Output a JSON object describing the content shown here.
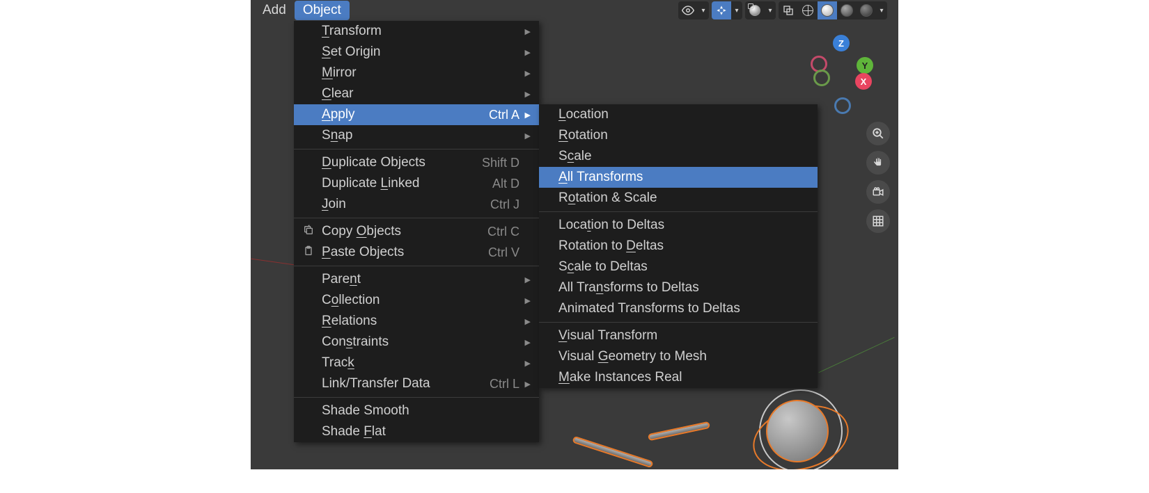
{
  "header": {
    "add": "Add",
    "object": "Object"
  },
  "menu_main": [
    {
      "type": "item",
      "label": "Transform",
      "ul": "T",
      "submenu": true
    },
    {
      "type": "item",
      "label": "Set Origin",
      "ul": "S",
      "submenu": true
    },
    {
      "type": "item",
      "label": "Mirror",
      "ul": "M",
      "submenu": true
    },
    {
      "type": "item",
      "label": "Clear",
      "ul": "C",
      "submenu": true
    },
    {
      "type": "item",
      "label": "Apply",
      "ul": "A",
      "shortcut": "Ctrl A",
      "submenu": true,
      "highlight": true
    },
    {
      "type": "item",
      "label": "Snap",
      "ul": "n",
      "submenu": true
    },
    {
      "type": "sep"
    },
    {
      "type": "item",
      "label": "Duplicate Objects",
      "ul": "D",
      "shortcut": "Shift D"
    },
    {
      "type": "item",
      "label": "Duplicate Linked",
      "ul": "L",
      "shortcut": "Alt D"
    },
    {
      "type": "item",
      "label": "Join",
      "ul": "J",
      "shortcut": "Ctrl J"
    },
    {
      "type": "sep"
    },
    {
      "type": "item",
      "label": "Copy Objects",
      "ul": "O",
      "shortcut": "Ctrl C",
      "icon": "copy"
    },
    {
      "type": "item",
      "label": "Paste Objects",
      "ul": "P",
      "shortcut": "Ctrl V",
      "icon": "paste"
    },
    {
      "type": "sep"
    },
    {
      "type": "item",
      "label": "Parent",
      "ul": "n",
      "submenu": true
    },
    {
      "type": "item",
      "label": "Collection",
      "ul": "o",
      "submenu": true
    },
    {
      "type": "item",
      "label": "Relations",
      "ul": "R",
      "submenu": true
    },
    {
      "type": "item",
      "label": "Constraints",
      "ul": "s",
      "submenu": true
    },
    {
      "type": "item",
      "label": "Track",
      "ul": "k",
      "submenu": true
    },
    {
      "type": "item",
      "label": "Link/Transfer Data",
      "shortcut": "Ctrl L",
      "submenu": true
    },
    {
      "type": "sep"
    },
    {
      "type": "item",
      "label": "Shade Smooth"
    },
    {
      "type": "item",
      "label": "Shade Flat",
      "ul": "F"
    }
  ],
  "menu_sub": [
    {
      "type": "item",
      "label": "Location",
      "ul": "L"
    },
    {
      "type": "item",
      "label": "Rotation",
      "ul": "R"
    },
    {
      "type": "item",
      "label": "Scale",
      "ul": "c"
    },
    {
      "type": "item",
      "label": "All Transforms",
      "ul": "A",
      "highlight": true
    },
    {
      "type": "item",
      "label": "Rotation & Scale",
      "ul": "o"
    },
    {
      "type": "sep"
    },
    {
      "type": "item",
      "label": "Location to Deltas",
      "ul": "t"
    },
    {
      "type": "item",
      "label": "Rotation to Deltas",
      "ul": "D"
    },
    {
      "type": "item",
      "label": "Scale to Deltas",
      "ul": "c"
    },
    {
      "type": "item",
      "label": "All Transforms to Deltas",
      "ul": "n"
    },
    {
      "type": "item",
      "label": "Animated Transforms to Deltas"
    },
    {
      "type": "sep"
    },
    {
      "type": "item",
      "label": "Visual Transform",
      "ul": "V"
    },
    {
      "type": "item",
      "label": "Visual Geometry to Mesh",
      "ul": "G"
    },
    {
      "type": "item",
      "label": "Make Instances Real",
      "ul": "M"
    }
  ],
  "gizmo": {
    "z": "Z",
    "y": "Y",
    "x": "X"
  },
  "colors": {
    "highlight": "#4b7cc2",
    "menu_bg": "#1d1d1d",
    "viewport_bg": "#3a3a3a",
    "text": "#d0d0d0",
    "shortcut": "#8a8a8a",
    "orange": "#e87a2a"
  }
}
